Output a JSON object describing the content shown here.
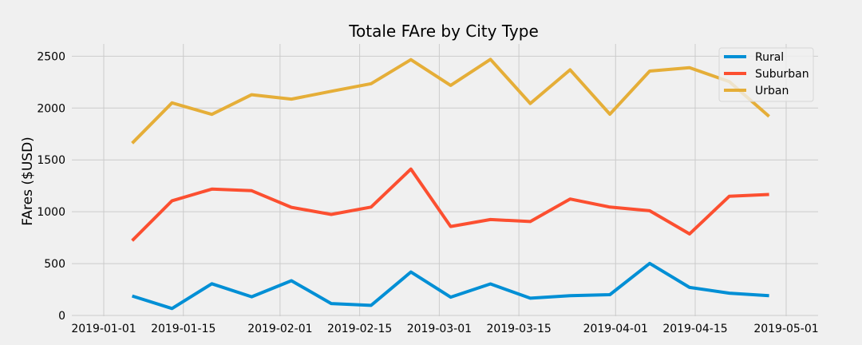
{
  "chart_data": {
    "type": "line",
    "title": "Totale FAre by City Type",
    "xlabel": "",
    "ylabel": "FAres ($USD)",
    "x_range": [
      "2019-01-01",
      "2019-05-01"
    ],
    "ylim": [
      0,
      2580
    ],
    "x_ticks": [
      "2019-01-01",
      "2019-01-15",
      "2019-02-01",
      "2019-02-15",
      "2019-03-01",
      "2019-03-15",
      "2019-04-01",
      "2019-04-15",
      "2019-05-01"
    ],
    "y_ticks": [
      0,
      500,
      1000,
      1500,
      2000,
      2500
    ],
    "grid": true,
    "legend_position": "top-right",
    "x": [
      "2019-01-06",
      "2019-01-13",
      "2019-01-20",
      "2019-01-27",
      "2019-02-03",
      "2019-02-10",
      "2019-02-17",
      "2019-02-24",
      "2019-03-03",
      "2019-03-10",
      "2019-03-17",
      "2019-03-24",
      "2019-03-31",
      "2019-04-07",
      "2019-04-14",
      "2019-04-21",
      "2019-04-28"
    ],
    "series": [
      {
        "name": "Rural",
        "color": "#008fd5",
        "values": [
          188,
          67,
          306,
          180,
          335,
          115,
          97,
          419,
          176,
          304,
          166,
          190,
          200,
          502,
          270,
          215,
          191
        ]
      },
      {
        "name": "Suburban",
        "color": "#fc4f30",
        "values": [
          722,
          1106,
          1218,
          1203,
          1043,
          974,
          1045,
          1412,
          858,
          925,
          906,
          1123,
          1045,
          1010,
          786,
          1150,
          1167
        ]
      },
      {
        "name": "Urban",
        "color": "#e5ae38",
        "values": [
          1661,
          2050,
          1939,
          2129,
          2086,
          2162,
          2235,
          2467,
          2219,
          2470,
          2044,
          2369,
          1941,
          2357,
          2390,
          2254,
          1920
        ]
      }
    ]
  }
}
